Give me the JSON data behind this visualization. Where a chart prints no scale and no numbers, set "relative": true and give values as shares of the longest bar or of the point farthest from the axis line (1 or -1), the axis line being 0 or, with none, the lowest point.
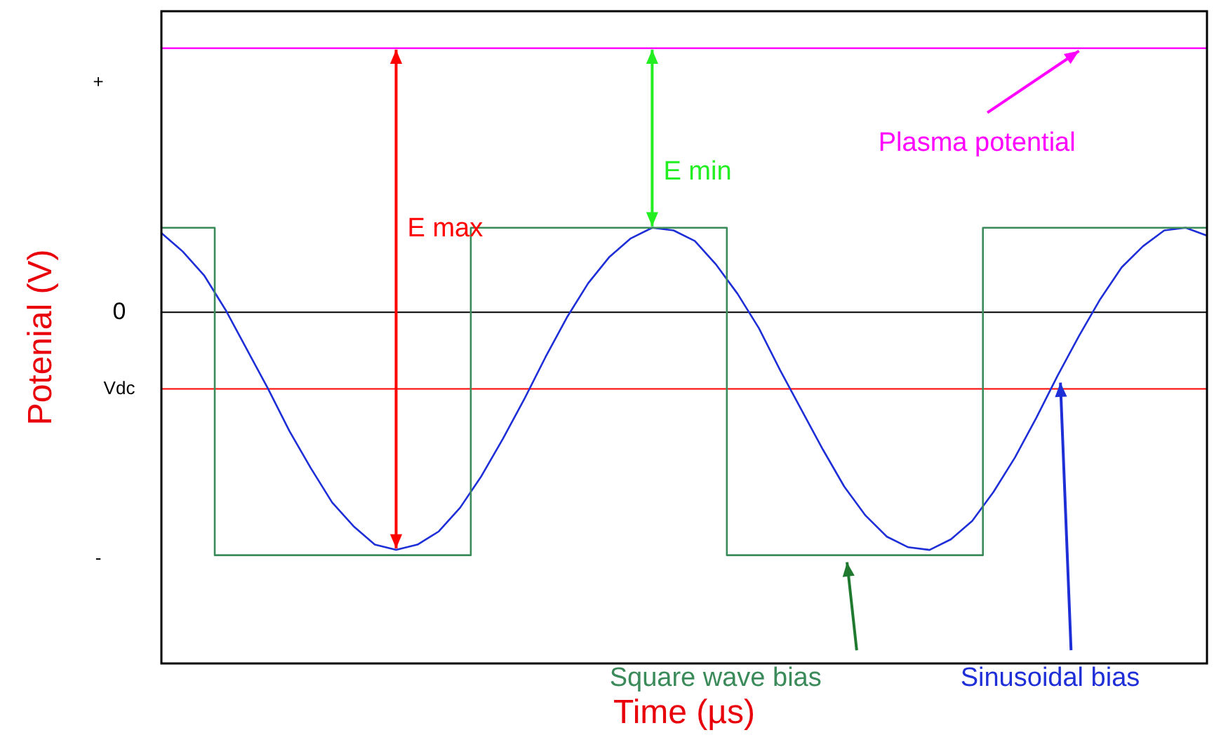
{
  "chart_data": {
    "type": "line",
    "relative": true,
    "xlabel": "Time (µs)",
    "ylabel": "Potenial (V)",
    "categories": [
      null,
      null,
      null,
      null,
      null,
      null,
      null,
      null,
      null,
      null,
      null,
      null,
      null,
      null,
      null,
      null,
      null,
      null,
      null,
      null,
      null,
      null,
      null,
      null,
      null,
      null,
      null,
      null,
      null,
      null,
      null,
      null,
      null,
      null,
      null,
      null,
      null,
      null,
      null,
      null,
      null,
      null,
      null,
      null,
      null,
      null,
      null,
      null,
      null,
      null
    ],
    "series": [
      {
        "name": "Plasma potential",
        "type": "line",
        "color": "#ff00ff",
        "values": [
          1,
          1,
          1,
          1,
          1,
          1,
          1,
          1,
          1,
          1,
          1,
          1,
          1,
          1,
          1,
          1,
          1,
          1,
          1,
          1,
          1,
          1,
          1,
          1,
          1,
          1,
          1,
          1,
          1,
          1,
          1,
          1,
          1,
          1,
          1,
          1,
          1,
          1,
          1,
          1,
          1,
          1,
          1,
          1,
          1,
          1,
          1,
          1,
          1,
          1
        ]
      },
      {
        "name": "Square wave bias",
        "type": "step",
        "color": "#3a8a5a",
        "values": [
          0.32,
          0.32,
          0.32,
          -0.92,
          -0.92,
          -0.92,
          -0.92,
          -0.92,
          -0.92,
          -0.92,
          -0.92,
          -0.92,
          -0.92,
          -0.92,
          -0.92,
          0.32,
          0.32,
          0.32,
          0.32,
          0.32,
          0.32,
          0.32,
          0.32,
          0.32,
          0.32,
          0.32,
          0.32,
          -0.92,
          -0.92,
          -0.92,
          -0.92,
          -0.92,
          -0.92,
          -0.92,
          -0.92,
          -0.92,
          -0.92,
          -0.92,
          -0.92,
          0.32,
          0.32,
          0.32,
          0.32,
          0.32,
          0.32,
          0.32,
          0.32,
          0.32,
          0.32,
          0.32
        ]
      },
      {
        "name": "Sinusoidal bias",
        "type": "line",
        "color": "#1f2fd8",
        "values": [
          0.3,
          0.23,
          0.14,
          0.01,
          -0.14,
          -0.29,
          -0.45,
          -0.59,
          -0.72,
          -0.81,
          -0.88,
          -0.9,
          -0.88,
          -0.83,
          -0.74,
          -0.62,
          -0.48,
          -0.33,
          -0.17,
          -0.02,
          0.11,
          0.21,
          0.28,
          0.32,
          0.31,
          0.27,
          0.18,
          0.07,
          -0.06,
          -0.22,
          -0.37,
          -0.52,
          -0.66,
          -0.77,
          -0.85,
          -0.89,
          -0.9,
          -0.86,
          -0.79,
          -0.68,
          -0.55,
          -0.4,
          -0.24,
          -0.09,
          0.05,
          0.17,
          0.25,
          0.31,
          0.32,
          0.29
        ]
      }
    ],
    "ref_lines": [
      {
        "axis": "y",
        "value": 0,
        "label": "0",
        "color": "#000000"
      },
      {
        "axis": "y",
        "value": -0.29,
        "label": "Vdc",
        "color": "#ff0000"
      }
    ],
    "annotations": [
      "+",
      "-",
      "E max",
      "E min"
    ],
    "legend": "top right",
    "marker": "none"
  }
}
